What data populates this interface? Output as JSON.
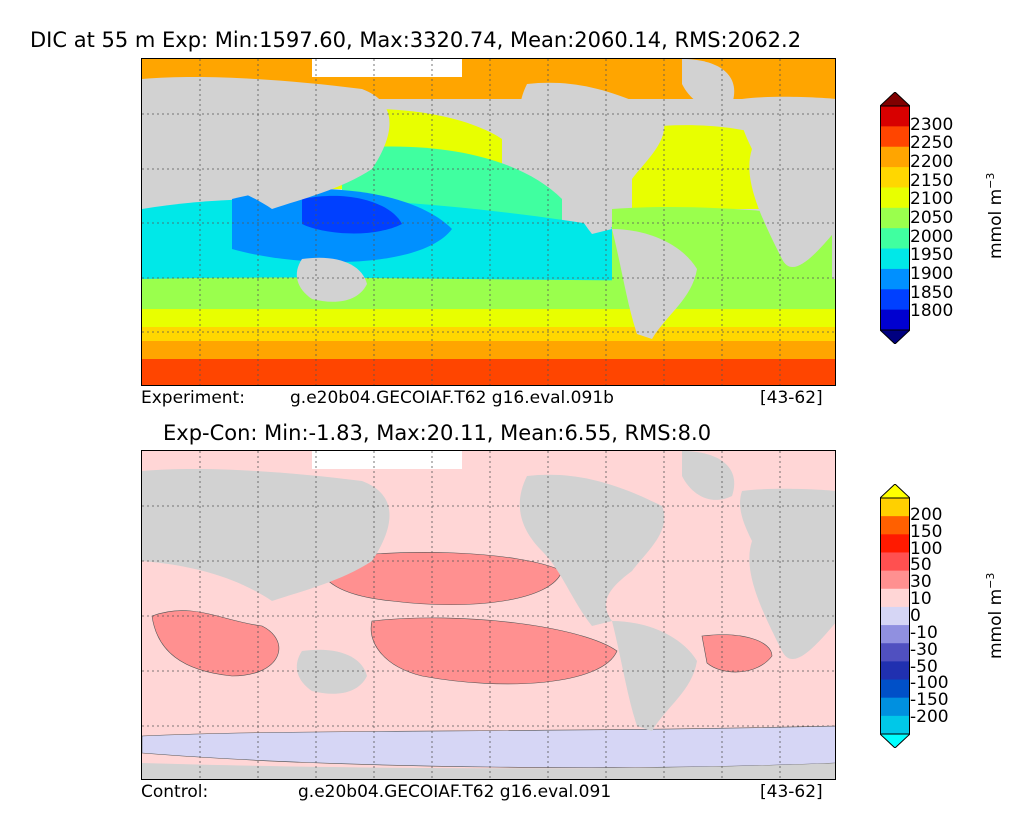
{
  "panel_top": {
    "title": "DIC at 55 m Exp: Min:1597.60, Max:3320.74, Mean:2060.14, RMS:2062.2",
    "caption_label": "Experiment:",
    "caption_case": "g.e20b04.GECOIAF.T62 g16.eval.091b",
    "caption_years": "[43-62]",
    "colorbar": {
      "unit": "mmol m",
      "unit_exponent": "−3",
      "ticks": [
        "2300",
        "2250",
        "2200",
        "2150",
        "2100",
        "2050",
        "2000",
        "1950",
        "1900",
        "1850",
        "1800"
      ],
      "colors": [
        "#800000",
        "#d80000",
        "#ff4500",
        "#ffa500",
        "#ffd700",
        "#e8ff00",
        "#9aff4d",
        "#40ffa0",
        "#00e8e8",
        "#0090ff",
        "#0040ff",
        "#0000d0",
        "#000080"
      ]
    }
  },
  "panel_bottom": {
    "title": "Exp-Con: Min:-1.83, Max:20.11, Mean:6.55, RMS:8.0",
    "caption_label": "Control:",
    "caption_case": "g.e20b04.GECOIAF.T62 g16.eval.091",
    "caption_years": "[43-62]",
    "colorbar": {
      "unit": "mmol m",
      "unit_exponent": "−3",
      "ticks": [
        "200",
        "150",
        "100",
        "50",
        "30",
        "10",
        "0",
        "-10",
        "-30",
        "-50",
        "-100",
        "-150",
        "-200"
      ],
      "colors": [
        "#ffff00",
        "#ffd000",
        "#ff6000",
        "#ff1a00",
        "#ff5050",
        "#ff9090",
        "#ffd6d6",
        "#d6d6f5",
        "#9090e0",
        "#5050c0",
        "#2030b0",
        "#0050c8",
        "#0090e0",
        "#00c8e8",
        "#00ffff"
      ]
    }
  },
  "land_color": "#d2d2d2"
}
